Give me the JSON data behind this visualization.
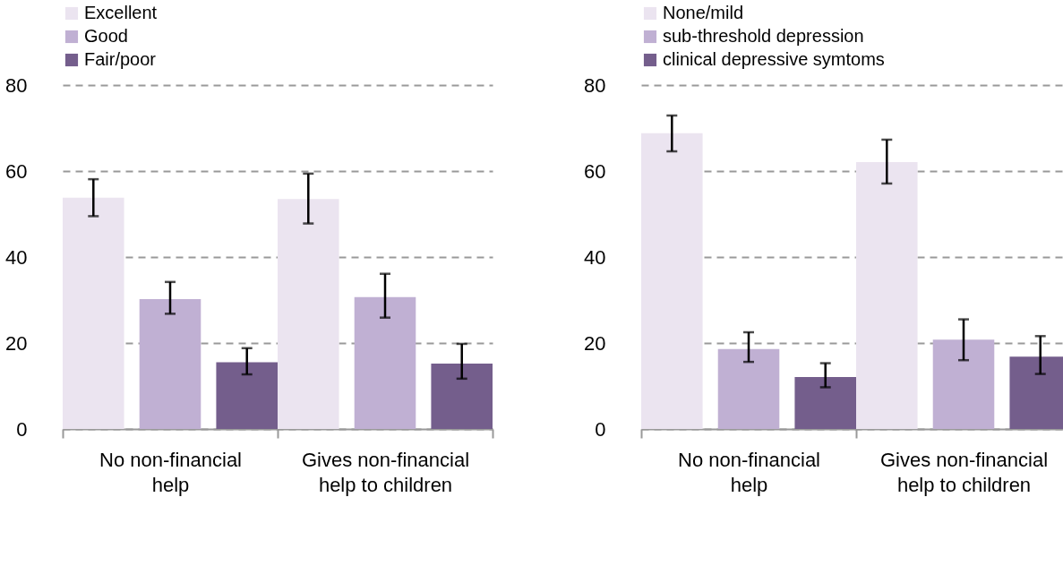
{
  "chart_data": [
    {
      "type": "bar",
      "categories": [
        "No non-financial help",
        "Gives non-financial help to children"
      ],
      "ylim": [
        0,
        80
      ],
      "yticks": [
        0,
        20,
        40,
        60,
        80
      ],
      "grid": "y",
      "legend": "top left",
      "series": [
        {
          "name": "Excellent",
          "color": "#ebe4f0",
          "values": [
            53.8,
            53.5
          ],
          "errors": [
            [
              49.5,
              58.1
            ],
            [
              47.8,
              59.4
            ]
          ]
        },
        {
          "name": "Good",
          "color": "#c0b0d3",
          "values": [
            30.2,
            30.7
          ],
          "errors": [
            [
              26.8,
              34.2
            ],
            [
              25.9,
              36.1
            ]
          ]
        },
        {
          "name": "Fair/poor",
          "color": "#745e8c",
          "values": [
            15.5,
            15.2
          ],
          "errors": [
            [
              12.7,
              18.8
            ],
            [
              11.7,
              19.8
            ]
          ]
        }
      ]
    },
    {
      "type": "bar",
      "categories": [
        "No non-financial help",
        "Gives non-financial help to children"
      ],
      "ylim": [
        0,
        80
      ],
      "yticks": [
        0,
        20,
        40,
        60,
        80
      ],
      "grid": "y",
      "legend": "top left",
      "series": [
        {
          "name": "None/mild",
          "color": "#ebe4f0",
          "values": [
            68.8,
            62.1
          ],
          "errors": [
            [
              64.6,
              72.9
            ],
            [
              57.1,
              67.3
            ]
          ]
        },
        {
          "name": "sub-threshold depression",
          "color": "#c0b0d3",
          "values": [
            18.6,
            20.8
          ],
          "errors": [
            [
              15.6,
              22.5
            ],
            [
              16.0,
              25.5
            ]
          ]
        },
        {
          "name": "clinical depressive symtoms",
          "color": "#745e8c",
          "values": [
            12.1,
            16.8
          ],
          "errors": [
            [
              9.7,
              15.3
            ],
            [
              12.8,
              21.6
            ]
          ]
        }
      ]
    }
  ]
}
